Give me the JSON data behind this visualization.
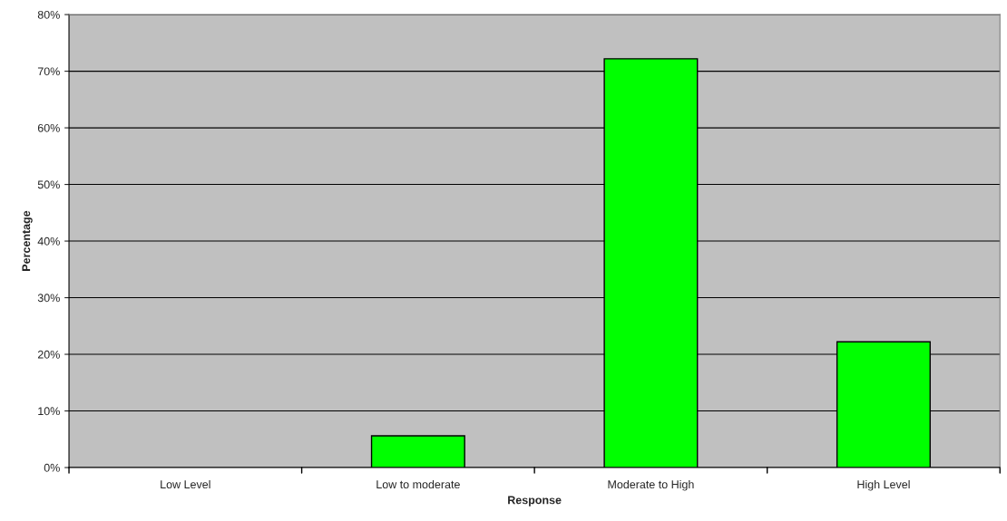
{
  "chart_data": {
    "type": "bar",
    "xlabel": "Response",
    "ylabel": "Percentage",
    "categories": [
      "Low Level",
      "Low to moderate",
      "Moderate to High",
      "High Level"
    ],
    "values": [
      0,
      5.6,
      72.2,
      22.2
    ],
    "color": "#00ff00",
    "ylim": [
      0,
      80
    ],
    "yticks": [
      {
        "value": 0,
        "label": "0%"
      },
      {
        "value": 10,
        "label": "10%"
      },
      {
        "value": 20,
        "label": "20%"
      },
      {
        "value": 30,
        "label": "30%"
      },
      {
        "value": 40,
        "label": "40%"
      },
      {
        "value": 50,
        "label": "50%"
      },
      {
        "value": 60,
        "label": "60%"
      },
      {
        "value": 70,
        "label": "70%"
      },
      {
        "value": 80,
        "label": "80%"
      }
    ],
    "grid": "y",
    "legend": false
  }
}
